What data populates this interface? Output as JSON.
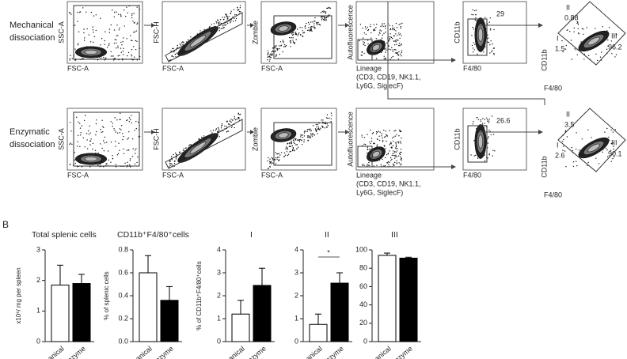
{
  "panel_letter": "B",
  "flow": {
    "axes": [
      {
        "y": "SSC-A",
        "x": "FSC-A"
      },
      {
        "y": "FSC-H",
        "x": "FSC-A"
      },
      {
        "y": "Zombie",
        "x": "FSC-A"
      },
      {
        "y": "Autofluorescence",
        "x": [
          "Lineage",
          "(CD3, CD19, NK1.1,",
          "Ly6G, SiglecF)"
        ]
      },
      {
        "y": "CD11b",
        "x": "F4/80"
      },
      {
        "y": "CD11b",
        "x": "F4/80"
      }
    ],
    "gate_names": [
      "I",
      "II",
      "III"
    ],
    "rows": [
      {
        "label": [
          "Mechanical",
          "dissociation"
        ],
        "cd11b_f480": 29,
        "subsets": [
          1.5,
          0.88,
          96.2
        ]
      },
      {
        "label": [
          "Enzymatic",
          "dissociation"
        ],
        "cd11b_f480": 26.6,
        "subsets": [
          2.6,
          3.5,
          90.1
        ]
      }
    ]
  },
  "chart_data": [
    {
      "type": "bar",
      "title": "Total splenic cells",
      "y_label": "x10⁶/ mg per spleen",
      "categories": [
        "Mechanical",
        "Enzyme"
      ],
      "values": [
        1.85,
        1.9
      ],
      "errors": [
        0.65,
        0.3
      ],
      "colors": [
        "#ffffff",
        "#000000"
      ],
      "ylim": [
        0,
        3
      ],
      "yticks": [
        0,
        1,
        2,
        3
      ]
    },
    {
      "type": "bar",
      "title": "CD11b⁺F4/80⁺cells",
      "y_label": "% of splenic cells",
      "categories": [
        "Mechanical",
        "Enzyme"
      ],
      "values": [
        0.6,
        0.36
      ],
      "errors": [
        0.15,
        0.12
      ],
      "colors": [
        "#ffffff",
        "#000000"
      ],
      "ylim": [
        0,
        0.8
      ],
      "yticks": [
        {
          "value": 0,
          "label": "0.0"
        },
        0.2,
        0.4,
        0.6,
        0.8
      ]
    },
    {
      "type": "bar",
      "title": "I",
      "y_label": "% of CD11b⁺F4/80⁺cells",
      "categories": [
        "Mechanical",
        "Enzyme"
      ],
      "values": [
        1.2,
        2.45
      ],
      "errors": [
        0.6,
        0.75
      ],
      "colors": [
        "#ffffff",
        "#000000"
      ],
      "ylim": [
        0,
        4
      ],
      "yticks": [
        0,
        1,
        2,
        3,
        4
      ]
    },
    {
      "type": "bar",
      "title": "II",
      "categories": [
        "Mechanical",
        "Enzyme"
      ],
      "values": [
        0.75,
        2.55
      ],
      "errors": [
        0.45,
        0.45
      ],
      "colors": [
        "#ffffff",
        "#000000"
      ],
      "ylim": [
        0,
        4
      ],
      "yticks": [
        0,
        1,
        2,
        3,
        4
      ],
      "annotation": "*"
    },
    {
      "type": "bar",
      "title": "III",
      "categories": [
        "Mechanical",
        "Enzyme"
      ],
      "values": [
        94,
        91
      ],
      "errors": [
        2.5,
        1
      ],
      "colors": [
        "#ffffff",
        "#000000"
      ],
      "ylim": [
        0,
        100
      ],
      "yticks": [
        0,
        20,
        40,
        60,
        80,
        100
      ]
    }
  ]
}
